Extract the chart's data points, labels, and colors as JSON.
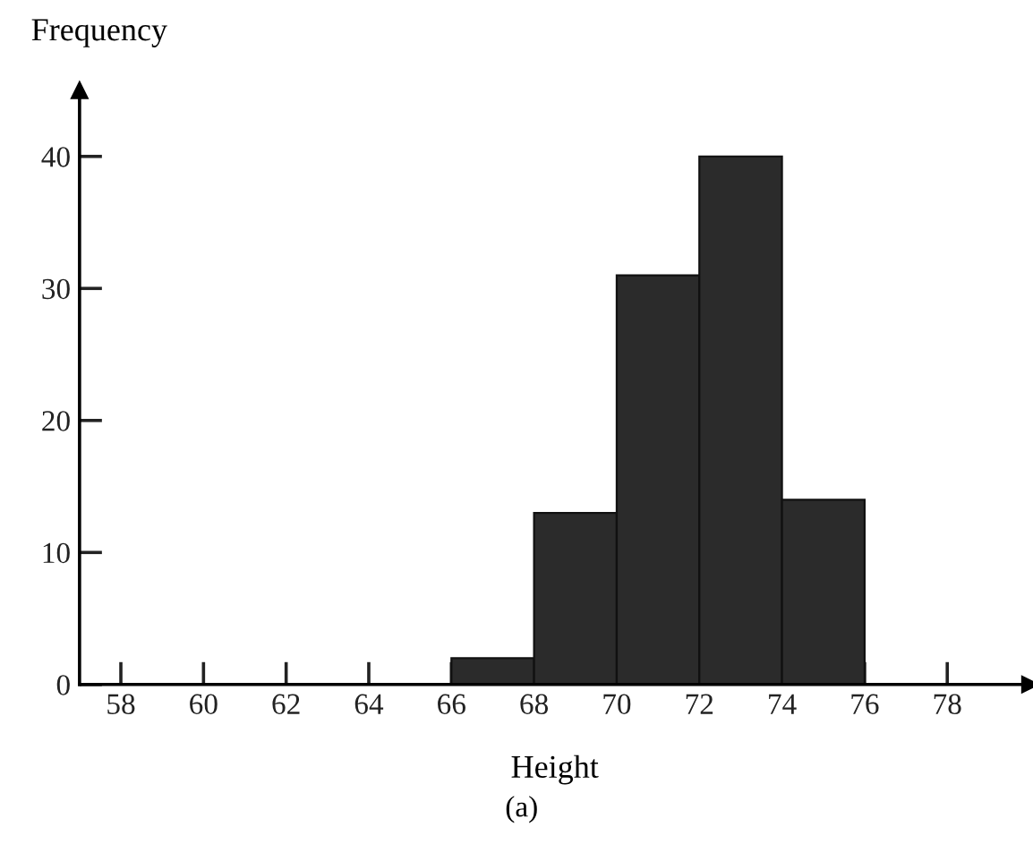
{
  "chart_data": {
    "type": "histogram",
    "xlabel": "Height",
    "ylabel": "Frequency",
    "bins": [
      66,
      68,
      70,
      72,
      74,
      76
    ],
    "values": [
      2,
      13,
      31,
      40,
      14
    ],
    "color": "#2b2b2b",
    "xlim": [
      57,
      80
    ],
    "ylim": [
      0,
      45
    ],
    "xticks": [
      58,
      60,
      62,
      64,
      66,
      68,
      70,
      72,
      74,
      76,
      78
    ],
    "yticks": [
      0,
      10,
      20,
      30,
      40
    ],
    "grid": false,
    "annotations": [
      "(a)"
    ]
  }
}
